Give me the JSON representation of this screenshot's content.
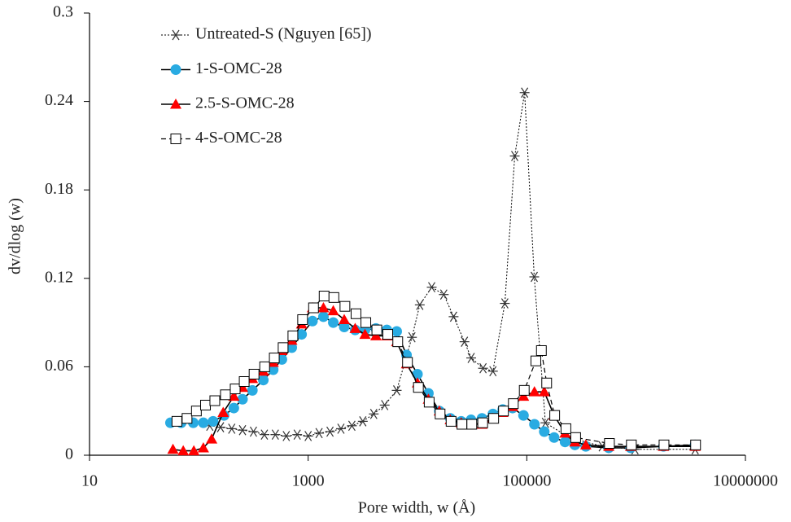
{
  "chart_data": {
    "type": "line",
    "x_label": "Pore width, w (Å)",
    "y_label": "dv/dlog (w)",
    "log_x": true,
    "xlim": [
      10,
      10000000
    ],
    "xticks": [
      10,
      1000,
      100000,
      10000000
    ],
    "ylim": [
      0,
      0.3
    ],
    "yticks": [
      0,
      0.06,
      0.12,
      0.18,
      0.24,
      0.3
    ],
    "legend": "upper-left",
    "series": [
      {
        "name": "Untreated-S (Nguyen [65])",
        "color": "#333333",
        "marker": "asterisk",
        "line": "dotted",
        "x": [
          126,
          158,
          200,
          251,
          316,
          398,
          501,
          631,
          794,
          1000,
          1259,
          1585,
          1995,
          2512,
          3162,
          3981,
          5012,
          6457,
          8900,
          10500,
          13500,
          17400,
          21400,
          26900,
          31000,
          39800,
          49000,
          63000,
          77600,
          95500,
          117000,
          148000,
          245000,
          490000,
          977000,
          3470000
        ],
        "values": [
          0.02,
          0.019,
          0.018,
          0.017,
          0.016,
          0.014,
          0.014,
          0.013,
          0.014,
          0.013,
          0.015,
          0.016,
          0.018,
          0.02,
          0.023,
          0.028,
          0.034,
          0.044,
          0.08,
          0.102,
          0.114,
          0.109,
          0.094,
          0.077,
          0.066,
          0.059,
          0.057,
          0.103,
          0.203,
          0.246,
          0.121,
          0.022,
          0.012,
          0.006,
          0.004,
          0.004
        ]
      },
      {
        "name": "1-S-OMC-28",
        "color": "#29abe2",
        "marker": "circle",
        "line": "solid",
        "x": [
          55,
          69,
          89,
          110,
          135,
          170,
          209,
          251,
          309,
          389,
          479,
          575,
          708,
          871,
          1096,
          1380,
          1698,
          2138,
          2692,
          3311,
          4169,
          5248,
          6457,
          7943,
          10000,
          12589,
          15849,
          19953,
          25119,
          30903,
          38905,
          48978,
          60256,
          74131,
          93325,
          117490,
          144544,
          177828,
          223872,
          275423,
          346737,
          562341,
          891251,
          1778279,
          3467369
        ],
        "values": [
          0.022,
          0.022,
          0.022,
          0.022,
          0.023,
          0.027,
          0.032,
          0.038,
          0.044,
          0.051,
          0.058,
          0.065,
          0.073,
          0.082,
          0.091,
          0.094,
          0.09,
          0.087,
          0.085,
          0.085,
          0.086,
          0.085,
          0.084,
          0.068,
          0.055,
          0.042,
          0.03,
          0.025,
          0.023,
          0.024,
          0.025,
          0.028,
          0.031,
          0.032,
          0.027,
          0.021,
          0.016,
          0.012,
          0.009,
          0.007,
          0.006,
          0.005,
          0.005,
          0.006,
          0.007
        ]
      },
      {
        "name": "2.5-S-OMC-28",
        "color": "#ff0000",
        "marker": "triangle",
        "line": "solid",
        "x": [
          58,
          72,
          90,
          110,
          131,
          167,
          209,
          251,
          309,
          389,
          479,
          575,
          708,
          871,
          1096,
          1380,
          1698,
          2138,
          2692,
          3311,
          4169,
          5248,
          6457,
          7943,
          10000,
          12589,
          15849,
          19953,
          25119,
          30903,
          38905,
          48978,
          60256,
          74131,
          93325,
          117490,
          144544,
          177828,
          223872,
          275423,
          346737,
          562341,
          891251,
          1778279,
          3467369
        ],
        "values": [
          0.004,
          0.003,
          0.003,
          0.005,
          0.011,
          0.029,
          0.04,
          0.046,
          0.052,
          0.057,
          0.063,
          0.071,
          0.078,
          0.089,
          0.1,
          0.1,
          0.098,
          0.092,
          0.086,
          0.082,
          0.081,
          0.081,
          0.077,
          0.062,
          0.049,
          0.038,
          0.03,
          0.024,
          0.022,
          0.021,
          0.021,
          0.025,
          0.029,
          0.033,
          0.04,
          0.043,
          0.043,
          0.027,
          0.015,
          0.009,
          0.007,
          0.006,
          0.006,
          0.006,
          0.006
        ]
      },
      {
        "name": "4-S-OMC-28",
        "color": "#000000",
        "marker": "square",
        "line": "dashed",
        "x": [
          63,
          78,
          95,
          115,
          140,
          175,
          215,
          260,
          320,
          400,
          490,
          590,
          725,
          890,
          1120,
          1400,
          1720,
          2170,
          2740,
          3370,
          4250,
          5350,
          6600,
          8100,
          10200,
          12800,
          16100,
          20300,
          25500,
          31400,
          39500,
          49800,
          61200,
          75300,
          94800,
          121000,
          136000,
          152000,
          180000,
          228000,
          280000,
          570000,
          905000,
          1800000,
          3500000
        ],
        "values": [
          0.023,
          0.025,
          0.03,
          0.034,
          0.037,
          0.041,
          0.045,
          0.05,
          0.055,
          0.06,
          0.066,
          0.073,
          0.081,
          0.092,
          0.1,
          0.108,
          0.107,
          0.101,
          0.096,
          0.09,
          0.085,
          0.082,
          0.077,
          0.063,
          0.046,
          0.036,
          0.028,
          0.023,
          0.021,
          0.021,
          0.022,
          0.025,
          0.03,
          0.035,
          0.044,
          0.064,
          0.071,
          0.049,
          0.027,
          0.018,
          0.012,
          0.008,
          0.007,
          0.007,
          0.007
        ]
      }
    ]
  }
}
